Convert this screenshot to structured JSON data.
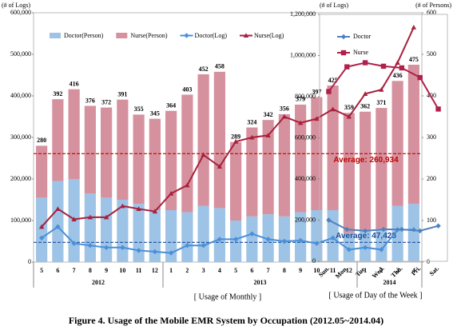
{
  "caption": "Figure 4. Usage of the Mobile EMR System by Occupation (2012.05~2014.04)",
  "chart_data": [
    {
      "type": "bar",
      "subtitle": "[ Usage of Monthly ]",
      "y_label": "(# of Logs)",
      "y2_label": "(# of Persons)",
      "categories": [
        "5",
        "6",
        "7",
        "8",
        "9",
        "10",
        "11",
        "12",
        "1",
        "2",
        "3",
        "4",
        "5",
        "6",
        "7",
        "8",
        "9",
        "10",
        "11",
        "12",
        "1",
        "2",
        "3",
        "4"
      ],
      "years": [
        "2012",
        "2013",
        "2014"
      ],
      "series": [
        {
          "name": "Doctor(Person)",
          "type": "bar",
          "axis": "y2",
          "color": "#9dc3e6",
          "values": [
            155,
            195,
            200,
            165,
            155,
            150,
            140,
            125,
            125,
            120,
            135,
            130,
            100,
            110,
            115,
            110,
            120,
            125,
            125,
            70,
            75,
            80,
            135,
            140
          ]
        },
        {
          "name": "Nurse(Person)",
          "type": "bar",
          "axis": "y2",
          "color": "#d6919e",
          "values": [
            125,
            197,
            216,
            211,
            217,
            241,
            215,
            220,
            239,
            283,
            317,
            328,
            189,
            214,
            227,
            246,
            259,
            272,
            300,
            289,
            287,
            291,
            301,
            335
          ]
        },
        {
          "name": "Doctor(Log)",
          "type": "line",
          "marker": "diamond",
          "color": "#4a8fd8",
          "values": [
            58000,
            85000,
            45000,
            40000,
            35000,
            35000,
            28000,
            25000,
            22000,
            40000,
            40000,
            55000,
            55000,
            68000,
            55000,
            50000,
            52000,
            45000,
            58000,
            30000,
            35000,
            30000,
            78000,
            78000
          ]
        },
        {
          "name": "Nurse(Log)",
          "type": "line",
          "marker": "triangle",
          "color": "#a8203c",
          "values": [
            85000,
            128000,
            103000,
            108000,
            108000,
            135000,
            128000,
            122000,
            165000,
            185000,
            258000,
            230000,
            290000,
            300000,
            305000,
            350000,
            335000,
            345000,
            368000,
            350000,
            405000,
            415000,
            480000,
            565000
          ]
        }
      ],
      "totals": [
        280,
        392,
        416,
        376,
        372,
        391,
        355,
        345,
        364,
        403,
        452,
        458,
        289,
        324,
        342,
        356,
        379,
        397,
        425,
        359,
        362,
        371,
        436,
        475
      ],
      "average_lines": [
        {
          "value": 260934,
          "label": "Average: 260,934",
          "color": "#c00000"
        },
        {
          "value": 47428,
          "label": "Average: 47,428",
          "color": "#1f4e9a"
        }
      ],
      "ylim": [
        0,
        600000
      ],
      "yticks": [
        0,
        {
          "value": 100000,
          "label": "100,000"
        },
        {
          "value": 200000,
          "label": "200,000"
        },
        {
          "value": 300000,
          "label": "300,000"
        },
        {
          "value": 400000,
          "label": "400,000"
        },
        {
          "value": 500000,
          "label": "500,000"
        },
        {
          "value": 600000,
          "label": "600,000"
        }
      ],
      "y2lim": [
        0,
        600
      ],
      "y2ticks": [
        0,
        100,
        200,
        300,
        400,
        500,
        600
      ],
      "grid": false,
      "legend": "top"
    },
    {
      "type": "line",
      "subtitle": "[ Usage of Day of the Week ]",
      "y_label": "(# of Logs)",
      "categories": [
        "Sun.",
        "Mon.",
        "Tue.",
        "Wed.",
        "Thu.",
        "Fri.",
        "Sat."
      ],
      "series": [
        {
          "name": "Doctor",
          "marker": "diamond",
          "color": "#4f81bd",
          "values": [
            200000,
            155000,
            148000,
            155000,
            155000,
            148000,
            172000
          ]
        },
        {
          "name": "Nurse",
          "marker": "square",
          "color": "#b0204a",
          "values": [
            825000,
            945000,
            965000,
            948000,
            940000,
            893000,
            740000
          ]
        }
      ],
      "ylim": [
        0,
        1200000
      ],
      "yticks": [
        0,
        {
          "value": 200000,
          "label": "200,000"
        },
        {
          "value": 400000,
          "label": "400,000"
        },
        {
          "value": 600000,
          "label": "600,000"
        },
        {
          "value": 800000,
          "label": "800,000"
        },
        {
          "value": 1000000,
          "label": "1,000,000"
        },
        {
          "value": 1200000,
          "label": "1,200,000"
        }
      ],
      "grid": false,
      "legend": "top-left"
    }
  ]
}
